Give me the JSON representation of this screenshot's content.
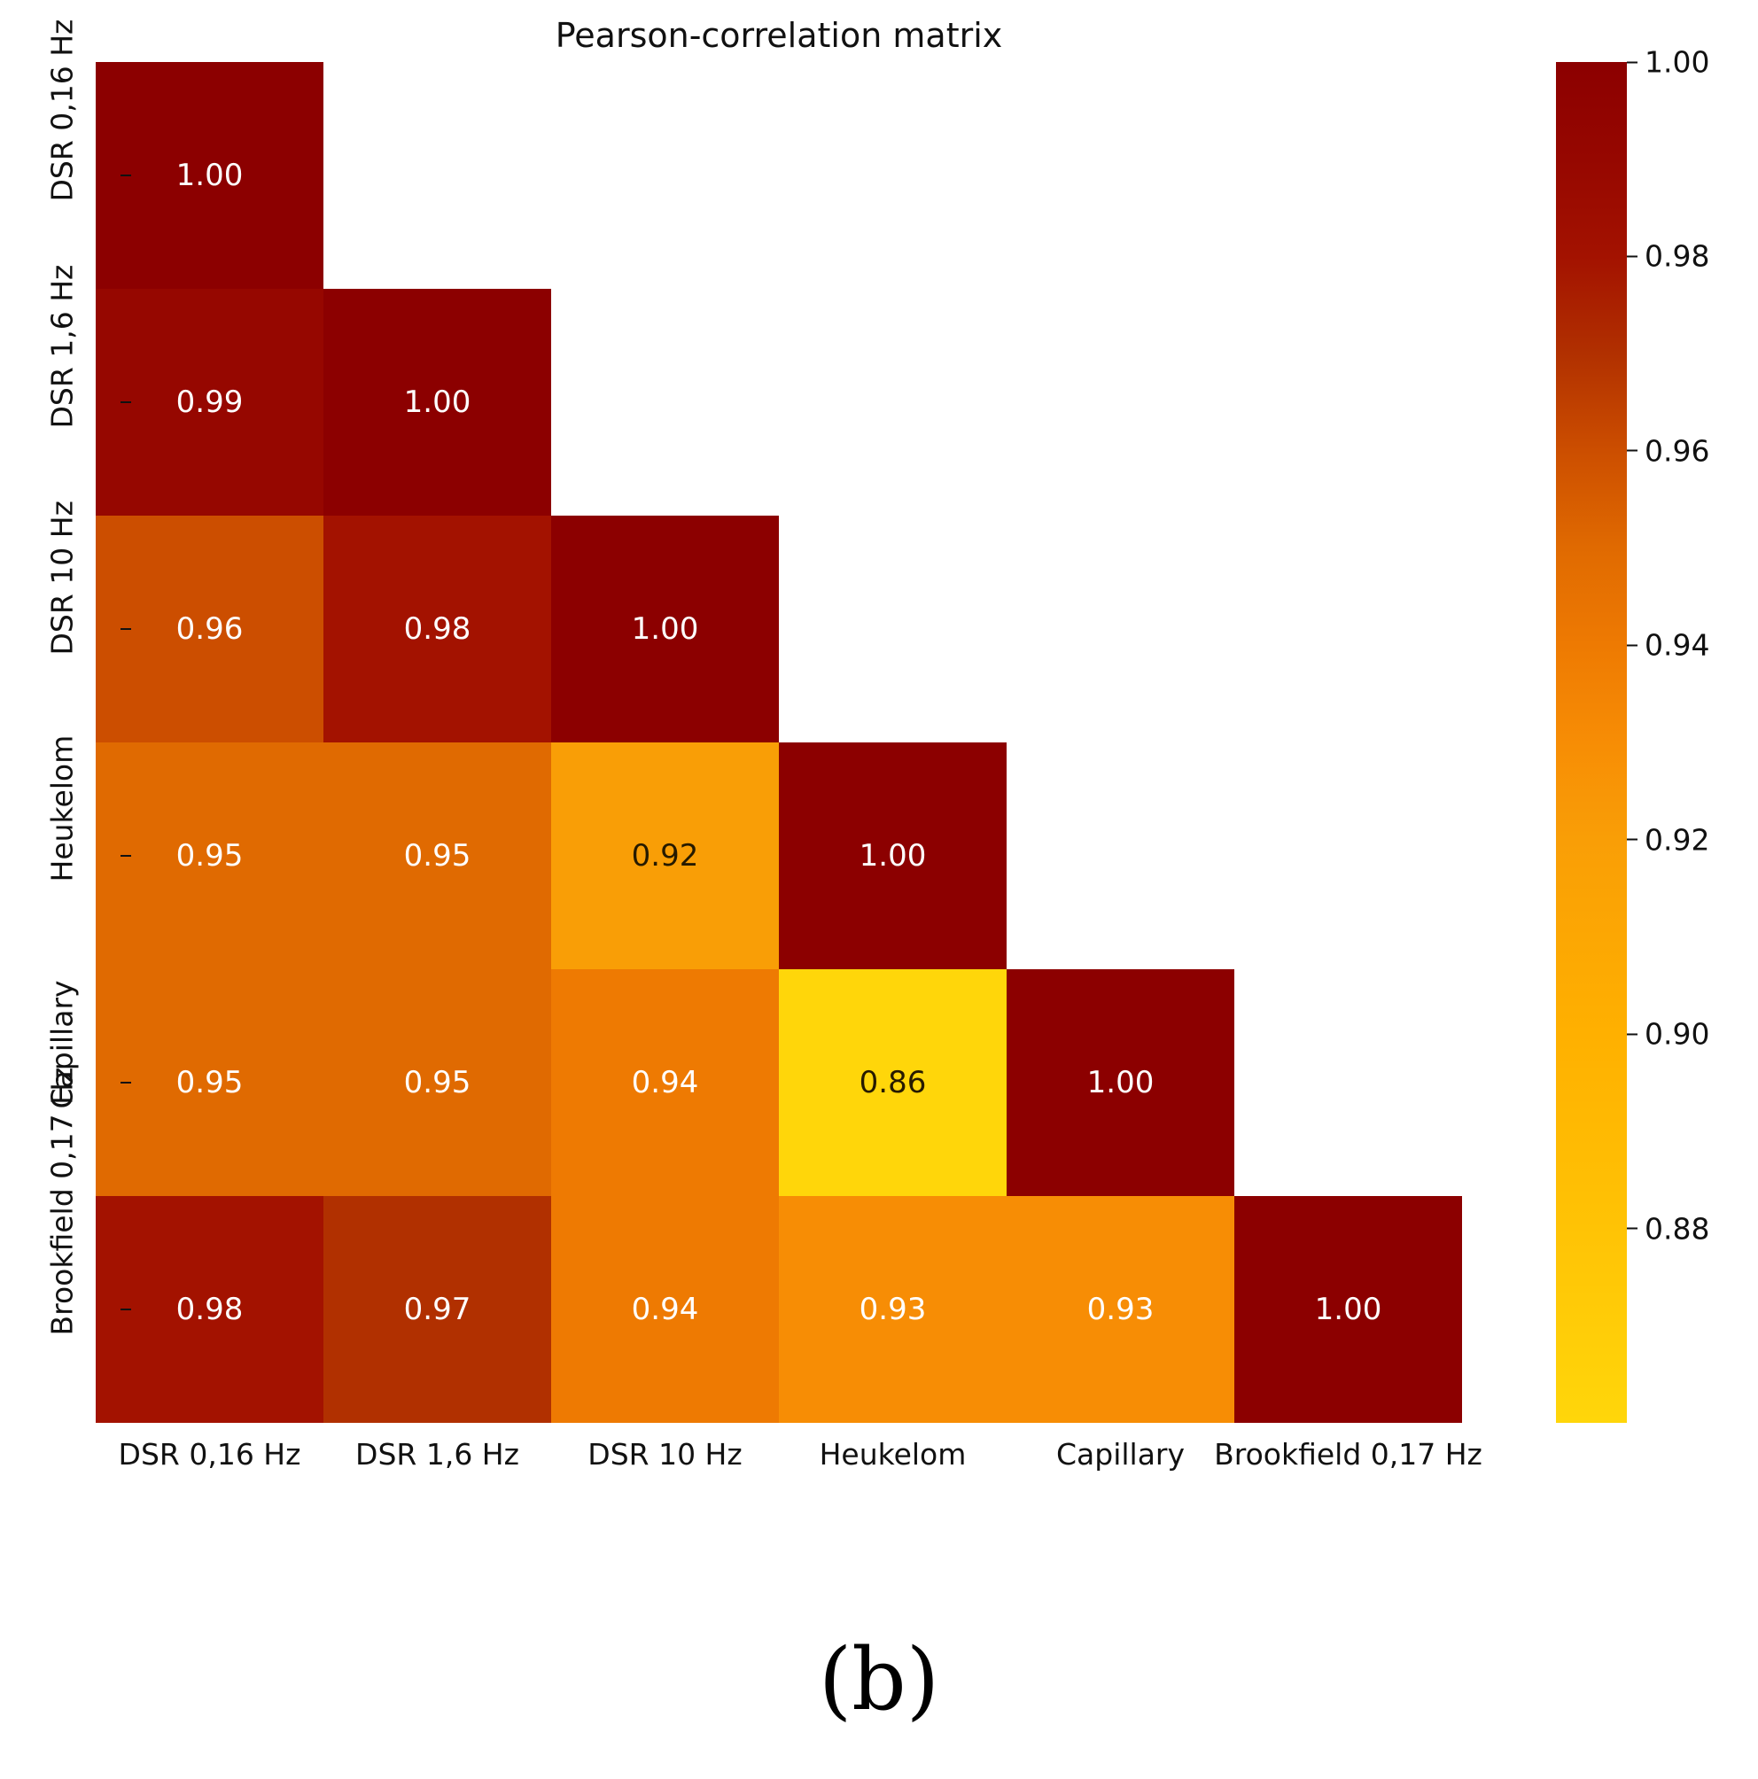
{
  "title": "Pearson-correlation matrix",
  "caption": "(b)",
  "chart_data": {
    "type": "heatmap",
    "title": "Pearson-correlation matrix",
    "labels": [
      "DSR 0,16 Hz",
      "DSR 1,6 Hz",
      "DSR 10 Hz",
      "Heukelom",
      "Capillary",
      "Brookfield 0,17 Hz"
    ],
    "matrix_lower_triangle": [
      [
        1.0
      ],
      [
        0.99,
        1.0
      ],
      [
        0.96,
        0.98,
        1.0
      ],
      [
        0.95,
        0.95,
        0.92,
        1.0
      ],
      [
        0.95,
        0.95,
        0.94,
        0.86,
        1.0
      ],
      [
        0.98,
        0.97,
        0.94,
        0.93,
        0.93,
        1.0
      ]
    ],
    "value_decimals": 2,
    "text_color_light": "#ffffff",
    "text_color_dark": "#261a00",
    "dark_text_threshold": 0.925,
    "colormap_stops": [
      [
        0.86,
        "#ffd60a"
      ],
      [
        0.9,
        "#ffb000"
      ],
      [
        0.92,
        "#f99e06"
      ],
      [
        0.93,
        "#f78d05"
      ],
      [
        0.94,
        "#ee7a02"
      ],
      [
        0.95,
        "#e06a01"
      ],
      [
        0.96,
        "#cc4e00"
      ],
      [
        0.97,
        "#b13000"
      ],
      [
        0.98,
        "#a31200"
      ],
      [
        0.99,
        "#960700"
      ],
      [
        1.0,
        "#8c0000"
      ]
    ],
    "colorbar": {
      "min": 0.86,
      "max": 1.0,
      "tick_labels": [
        "1.00",
        "0.98",
        "0.96",
        "0.94",
        "0.92",
        "0.90",
        "0.88"
      ]
    },
    "legend_position": "right",
    "grid": false
  }
}
